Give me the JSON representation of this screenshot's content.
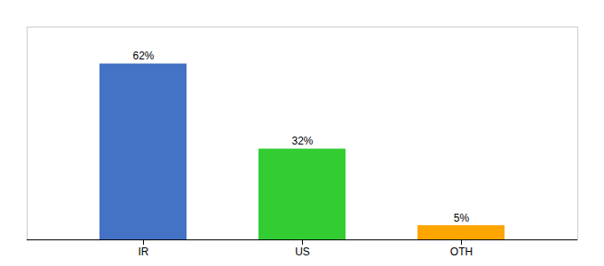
{
  "chart_data": {
    "type": "bar",
    "categories": [
      "IR",
      "US",
      "OTH"
    ],
    "values": [
      62,
      32,
      5
    ],
    "value_labels": [
      "62%",
      "32%",
      "5%"
    ],
    "colors": [
      "#4472C4",
      "#33CC33",
      "#FFA500"
    ],
    "ylim": [
      0,
      75
    ],
    "data_labels": true,
    "tick_labels": "x",
    "grid": false
  }
}
